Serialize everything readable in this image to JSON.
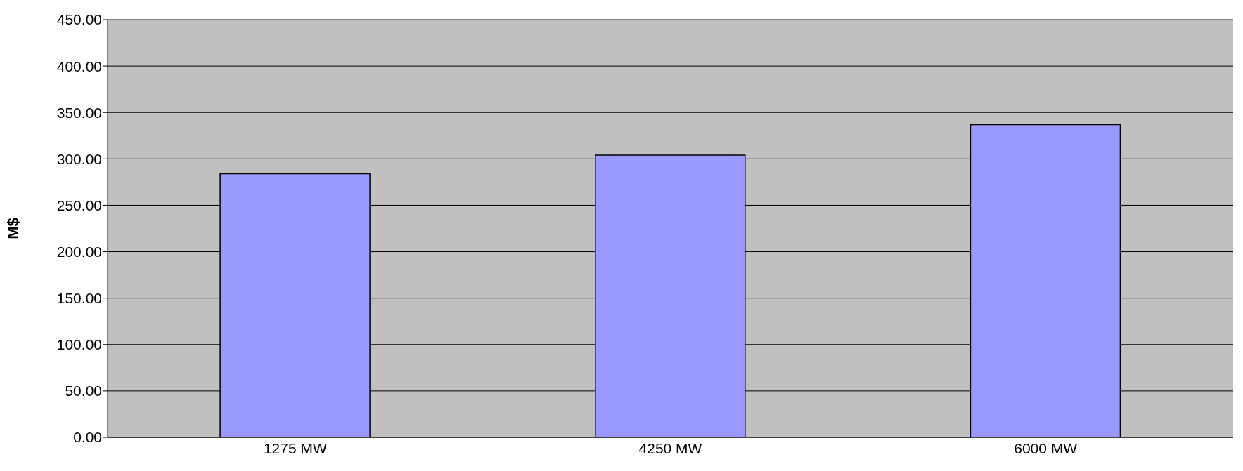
{
  "chart_data": {
    "type": "bar",
    "ylabel": "M$",
    "categories": [
      "1275 MW",
      "4250 MW",
      "6000 MW"
    ],
    "values": [
      284,
      304,
      337
    ],
    "color": "#9999ff",
    "ylim": [
      0,
      450
    ],
    "yticks": [
      {
        "value": 0,
        "label": "0.00"
      },
      {
        "value": 50,
        "label": "50.00"
      },
      {
        "value": 100,
        "label": "100.00"
      },
      {
        "value": 150,
        "label": "150.00"
      },
      {
        "value": 200,
        "label": "200.00"
      },
      {
        "value": 250,
        "label": "250.00"
      },
      {
        "value": 300,
        "label": "300.00"
      },
      {
        "value": 350,
        "label": "350.00"
      },
      {
        "value": 400,
        "label": "400.00"
      },
      {
        "value": 450,
        "label": "450.00"
      }
    ],
    "grid": "y",
    "legend": false
  }
}
